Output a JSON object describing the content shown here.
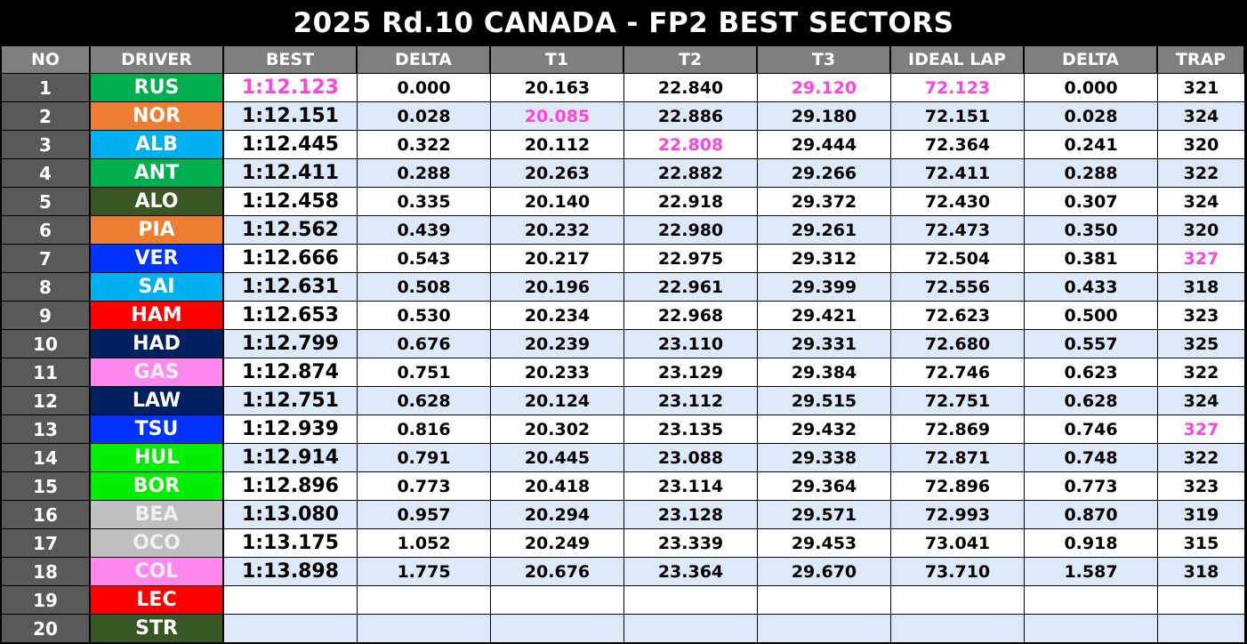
{
  "title": "2025 Rd.10 CANADA - FP2 BEST SECTORS",
  "columns": [
    "NO",
    "DRIVER",
    "BEST",
    "DELTA",
    "T1",
    "T2",
    "T3",
    "IDEAL LAP",
    "DELTA",
    "TRAP"
  ],
  "colors": {
    "fastest_highlight": "#ff44dd",
    "row_alt": "#dde9f7",
    "header_bg": "#7f7f7f",
    "number_bg": "#595959"
  },
  "rows": [
    {
      "no": "1",
      "driver": "RUS",
      "team_color": "#00b050",
      "best": "1:12.123",
      "delta": "0.000",
      "t1": "20.163",
      "t2": "22.840",
      "t3": "29.120",
      "ideal": "72.123",
      "ideal_delta": "0.000",
      "trap": "321",
      "pink": [
        "best",
        "t3",
        "ideal"
      ]
    },
    {
      "no": "2",
      "driver": "NOR",
      "team_color": "#ed7d31",
      "best": "1:12.151",
      "delta": "0.028",
      "t1": "20.085",
      "t2": "22.886",
      "t3": "29.180",
      "ideal": "72.151",
      "ideal_delta": "0.028",
      "trap": "324",
      "pink": [
        "t1"
      ]
    },
    {
      "no": "3",
      "driver": "ALB",
      "team_color": "#00b0f0",
      "best": "1:12.445",
      "delta": "0.322",
      "t1": "20.112",
      "t2": "22.808",
      "t3": "29.444",
      "ideal": "72.364",
      "ideal_delta": "0.241",
      "trap": "320",
      "pink": [
        "t2"
      ]
    },
    {
      "no": "4",
      "driver": "ANT",
      "team_color": "#00b050",
      "best": "1:12.411",
      "delta": "0.288",
      "t1": "20.263",
      "t2": "22.882",
      "t3": "29.266",
      "ideal": "72.411",
      "ideal_delta": "0.288",
      "trap": "322",
      "pink": []
    },
    {
      "no": "5",
      "driver": "ALO",
      "team_color": "#385723",
      "best": "1:12.458",
      "delta": "0.335",
      "t1": "20.140",
      "t2": "22.918",
      "t3": "29.372",
      "ideal": "72.430",
      "ideal_delta": "0.307",
      "trap": "324",
      "pink": []
    },
    {
      "no": "6",
      "driver": "PIA",
      "team_color": "#ed7d31",
      "best": "1:12.562",
      "delta": "0.439",
      "t1": "20.232",
      "t2": "22.980",
      "t3": "29.261",
      "ideal": "72.473",
      "ideal_delta": "0.350",
      "trap": "320",
      "pink": []
    },
    {
      "no": "7",
      "driver": "VER",
      "team_color": "#0033ff",
      "best": "1:12.666",
      "delta": "0.543",
      "t1": "20.217",
      "t2": "22.975",
      "t3": "29.312",
      "ideal": "72.504",
      "ideal_delta": "0.381",
      "trap": "327",
      "pink": [
        "trap"
      ]
    },
    {
      "no": "8",
      "driver": "SAI",
      "team_color": "#00b0f0",
      "best": "1:12.631",
      "delta": "0.508",
      "t1": "20.196",
      "t2": "22.961",
      "t3": "29.399",
      "ideal": "72.556",
      "ideal_delta": "0.433",
      "trap": "318",
      "pink": []
    },
    {
      "no": "9",
      "driver": "HAM",
      "team_color": "#ff0000",
      "best": "1:12.653",
      "delta": "0.530",
      "t1": "20.234",
      "t2": "22.968",
      "t3": "29.421",
      "ideal": "72.623",
      "ideal_delta": "0.500",
      "trap": "323",
      "pink": []
    },
    {
      "no": "10",
      "driver": "HAD",
      "team_color": "#002060",
      "best": "1:12.799",
      "delta": "0.676",
      "t1": "20.239",
      "t2": "23.110",
      "t3": "29.331",
      "ideal": "72.680",
      "ideal_delta": "0.557",
      "trap": "325",
      "pink": []
    },
    {
      "no": "11",
      "driver": "GAS",
      "team_color": "#ff88ee",
      "best": "1:12.874",
      "delta": "0.751",
      "t1": "20.233",
      "t2": "23.129",
      "t3": "29.384",
      "ideal": "72.746",
      "ideal_delta": "0.623",
      "trap": "322",
      "pink": [],
      "light": true
    },
    {
      "no": "12",
      "driver": "LAW",
      "team_color": "#002060",
      "best": "1:12.751",
      "delta": "0.628",
      "t1": "20.124",
      "t2": "23.112",
      "t3": "29.515",
      "ideal": "72.751",
      "ideal_delta": "0.628",
      "trap": "324",
      "pink": []
    },
    {
      "no": "13",
      "driver": "TSU",
      "team_color": "#0033ff",
      "best": "1:12.939",
      "delta": "0.816",
      "t1": "20.302",
      "t2": "23.135",
      "t3": "29.432",
      "ideal": "72.869",
      "ideal_delta": "0.746",
      "trap": "327",
      "pink": [
        "trap"
      ]
    },
    {
      "no": "14",
      "driver": "HUL",
      "team_color": "#00ee00",
      "best": "1:12.914",
      "delta": "0.791",
      "t1": "20.445",
      "t2": "23.088",
      "t3": "29.338",
      "ideal": "72.871",
      "ideal_delta": "0.748",
      "trap": "322",
      "pink": []
    },
    {
      "no": "15",
      "driver": "BOR",
      "team_color": "#00ee00",
      "best": "1:12.896",
      "delta": "0.773",
      "t1": "20.418",
      "t2": "23.114",
      "t3": "29.364",
      "ideal": "72.896",
      "ideal_delta": "0.773",
      "trap": "323",
      "pink": []
    },
    {
      "no": "16",
      "driver": "BEA",
      "team_color": "#bfbfbf",
      "best": "1:13.080",
      "delta": "0.957",
      "t1": "20.294",
      "t2": "23.128",
      "t3": "29.571",
      "ideal": "72.993",
      "ideal_delta": "0.870",
      "trap": "319",
      "pink": [],
      "light": true
    },
    {
      "no": "17",
      "driver": "OCO",
      "team_color": "#bfbfbf",
      "best": "1:13.175",
      "delta": "1.052",
      "t1": "20.249",
      "t2": "23.339",
      "t3": "29.453",
      "ideal": "73.041",
      "ideal_delta": "0.918",
      "trap": "315",
      "pink": [],
      "light": true
    },
    {
      "no": "18",
      "driver": "COL",
      "team_color": "#ff88ee",
      "best": "1:13.898",
      "delta": "1.775",
      "t1": "20.676",
      "t2": "23.364",
      "t3": "29.670",
      "ideal": "73.710",
      "ideal_delta": "1.587",
      "trap": "318",
      "pink": [],
      "light": true
    },
    {
      "no": "19",
      "driver": "LEC",
      "team_color": "#ff0000",
      "best": "",
      "delta": "",
      "t1": "",
      "t2": "",
      "t3": "",
      "ideal": "",
      "ideal_delta": "",
      "trap": "",
      "pink": []
    },
    {
      "no": "20",
      "driver": "STR",
      "team_color": "#385723",
      "best": "",
      "delta": "",
      "t1": "",
      "t2": "",
      "t3": "",
      "ideal": "",
      "ideal_delta": "",
      "trap": "",
      "pink": []
    }
  ]
}
